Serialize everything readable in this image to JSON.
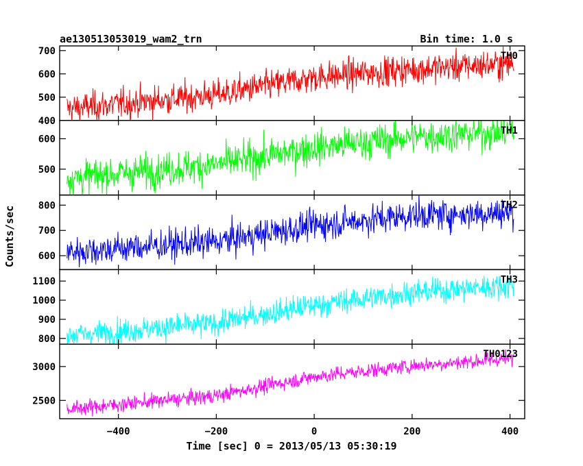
{
  "header": {
    "left_title": "ae130513053019_wam2_trn",
    "right_title": "Bin time: 1.0 s"
  },
  "axes": {
    "xlabel": "Time [sec] 0 = 2013/05/13 05:30:19",
    "ylabel": "Counts/sec"
  },
  "chart_data": {
    "type": "line",
    "x_range": [
      -520,
      430
    ],
    "x_ticks": [
      -400,
      -200,
      0,
      200,
      400
    ],
    "x_data_range": [
      -505,
      408
    ],
    "bin_time_s": 1.0,
    "panels": [
      {
        "name": "TH0",
        "color": "#ff0000",
        "ylim": [
          400,
          720
        ],
        "yticks": [
          400,
          500,
          600,
          700
        ],
        "trend": [
          [
            -505,
            450
          ],
          [
            -200,
            510
          ],
          [
            0,
            585
          ],
          [
            200,
            620
          ],
          [
            408,
            645
          ]
        ],
        "noise": 32
      },
      {
        "name": "TH1",
        "color": "#00ff00",
        "ylim": [
          415,
          660
        ],
        "yticks": [
          500,
          600
        ],
        "trend": [
          [
            -505,
            470
          ],
          [
            -200,
            515
          ],
          [
            0,
            570
          ],
          [
            200,
            605
          ],
          [
            408,
            625
          ]
        ],
        "noise": 28
      },
      {
        "name": "TH2",
        "color": "#0000ff",
        "ylim": [
          545,
          840
        ],
        "yticks": [
          600,
          700,
          800
        ],
        "trend": [
          [
            -505,
            615
          ],
          [
            -200,
            655
          ],
          [
            0,
            720
          ],
          [
            200,
            760
          ],
          [
            408,
            770
          ]
        ],
        "noise": 30
      },
      {
        "name": "TH3",
        "color": "#00ffff",
        "ylim": [
          770,
          1160
        ],
        "yticks": [
          800,
          900,
          1000,
          1100
        ],
        "trend": [
          [
            -505,
            815
          ],
          [
            -200,
            880
          ],
          [
            0,
            975
          ],
          [
            200,
            1040
          ],
          [
            408,
            1080
          ]
        ],
        "noise": 32
      },
      {
        "name": "TH0123",
        "color": "#ff00ff",
        "ylim": [
          2230,
          3330
        ],
        "yticks": [
          2500,
          3000
        ],
        "trend": [
          [
            -505,
            2370
          ],
          [
            -200,
            2570
          ],
          [
            0,
            2850
          ],
          [
            200,
            3010
          ],
          [
            408,
            3120
          ]
        ],
        "noise": 55
      }
    ]
  }
}
